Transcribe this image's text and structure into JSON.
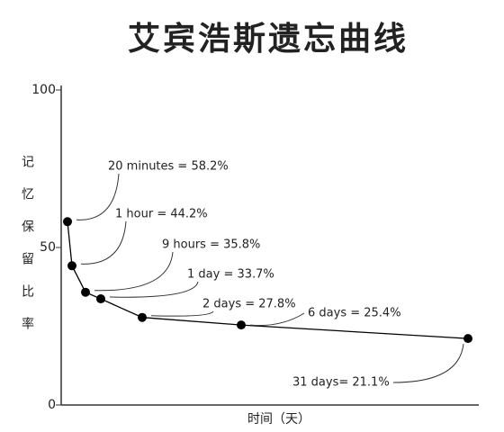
{
  "chart_data": {
    "type": "line",
    "title": "艾宾浩斯遗忘曲线",
    "y_label": "记忆保留比率",
    "x_label": "时间（天）",
    "values": [
      58.2,
      44.2,
      35.8,
      33.7,
      27.8,
      25.4,
      21.1
    ],
    "value_labels": [
      "20 minutes = 58.2%",
      "1 hour = 44.2%",
      "9 hours = 35.8%",
      "1 day = 33.7%",
      "2 days = 27.8%",
      "6 days = 25.4%",
      "31 days= 21.1%"
    ],
    "color": "#000000",
    "ylim": [
      0,
      100
    ],
    "yticks": [
      0,
      50,
      100
    ]
  }
}
